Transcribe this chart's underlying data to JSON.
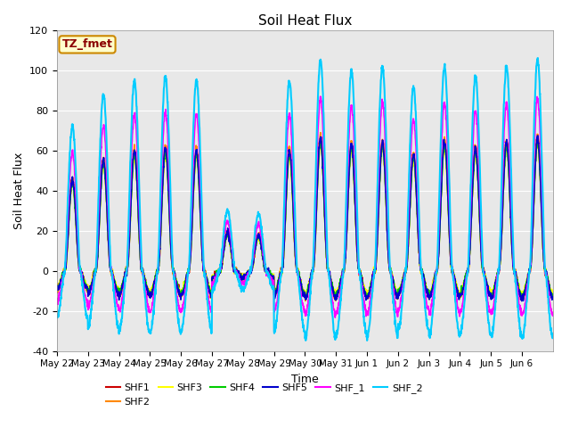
{
  "title": "Soil Heat Flux",
  "xlabel": "Time",
  "ylabel": "Soil Heat Flux",
  "ylim": [
    -40,
    120
  ],
  "series_labels": [
    "SHF1",
    "SHF2",
    "SHF3",
    "SHF4",
    "SHF5",
    "SHF_1",
    "SHF_2"
  ],
  "series_colors": [
    "#cc0000",
    "#ff8800",
    "#ffff00",
    "#00cc00",
    "#0000cc",
    "#ff00ff",
    "#00ccff"
  ],
  "series_linewidths": [
    1.2,
    1.2,
    1.2,
    1.2,
    1.2,
    1.2,
    1.5
  ],
  "annotation_text": "TZ_fmet",
  "annotation_color": "#8b0000",
  "annotation_bg": "#ffffcc",
  "annotation_border": "#cc8800",
  "plot_bg": "#e8e8e8",
  "tick_labels": [
    "May 22",
    "May 23",
    "May 24",
    "May 25",
    "May 26",
    "May 27",
    "May 28",
    "May 29",
    "May 30",
    "May 31",
    "Jun 1",
    "Jun 2",
    "Jun 3",
    "Jun 4",
    "Jun 5",
    "Jun 6"
  ],
  "yticks": [
    -40,
    -20,
    0,
    20,
    40,
    60,
    80,
    100,
    120
  ],
  "num_days": 16
}
